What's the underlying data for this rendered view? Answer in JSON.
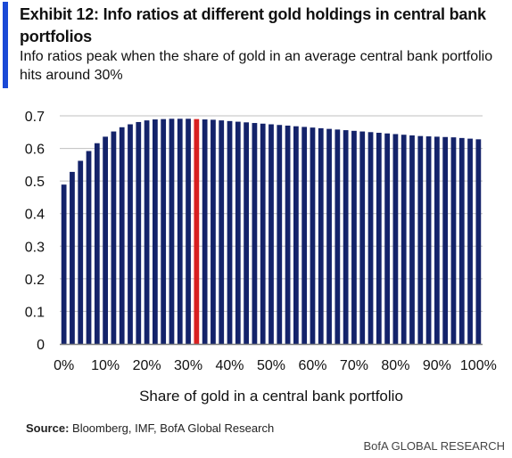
{
  "header": {
    "title": "Exhibit 12: Info ratios at different gold holdings in central bank portfolios",
    "subtitle": "Info ratios peak when the share of gold in an average central bank portfolio hits around 30%"
  },
  "footer": {
    "source_label": "Source:",
    "source_text": " Bloomberg, IMF, BofA Global Research",
    "brand": "BofA GLOBAL RESEARCH"
  },
  "colors": {
    "bar": "#14236a",
    "highlight": "#d92020",
    "grid": "#bfbfbf",
    "axis": "#7f7f7f"
  },
  "chart_data": {
    "type": "bar",
    "xlabel": "Share of gold in a central bank portfolio",
    "ylabel": "",
    "ylim": [
      0,
      0.7
    ],
    "yticks": [
      "0",
      "0.1",
      "0.2",
      "0.3",
      "0.4",
      "0.5",
      "0.6",
      "0.7"
    ],
    "xticks": [
      "0%",
      "10%",
      "20%",
      "30%",
      "40%",
      "50%",
      "60%",
      "70%",
      "80%",
      "90%",
      "100%"
    ],
    "categories": [
      "0%",
      "2%",
      "4%",
      "6%",
      "8%",
      "10%",
      "12%",
      "14%",
      "16%",
      "18%",
      "20%",
      "22%",
      "24%",
      "26%",
      "28%",
      "30%",
      "32%",
      "34%",
      "36%",
      "38%",
      "40%",
      "42%",
      "44%",
      "46%",
      "48%",
      "50%",
      "52%",
      "54%",
      "56%",
      "58%",
      "60%",
      "62%",
      "64%",
      "66%",
      "68%",
      "70%",
      "72%",
      "74%",
      "76%",
      "78%",
      "80%",
      "82%",
      "84%",
      "86%",
      "88%",
      "90%",
      "92%",
      "94%",
      "96%",
      "98%",
      "100%"
    ],
    "values": [
      0.489,
      0.528,
      0.562,
      0.592,
      0.616,
      0.636,
      0.652,
      0.665,
      0.674,
      0.681,
      0.686,
      0.689,
      0.69,
      0.691,
      0.691,
      0.691,
      0.69,
      0.689,
      0.688,
      0.686,
      0.684,
      0.682,
      0.68,
      0.678,
      0.676,
      0.674,
      0.672,
      0.67,
      0.668,
      0.666,
      0.664,
      0.662,
      0.66,
      0.658,
      0.656,
      0.654,
      0.652,
      0.65,
      0.648,
      0.646,
      0.644,
      0.642,
      0.64,
      0.638,
      0.637,
      0.636,
      0.635,
      0.634,
      0.632,
      0.63,
      0.628
    ],
    "highlight_category": "32%",
    "grid": true
  }
}
